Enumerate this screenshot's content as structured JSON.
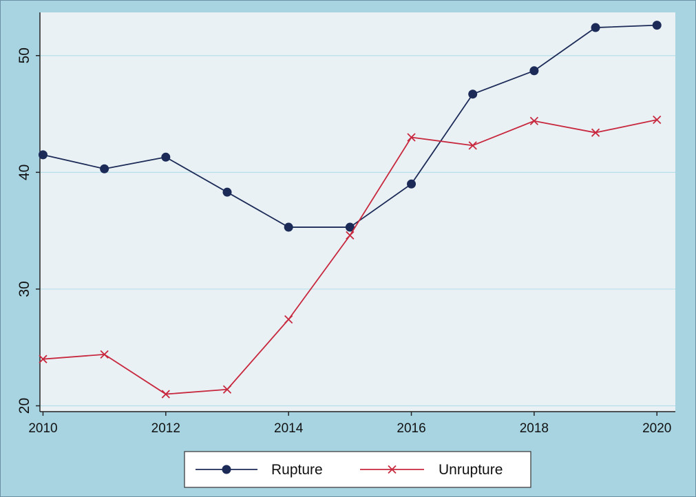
{
  "chart_data": {
    "type": "line",
    "title": "",
    "xlabel": "",
    "ylabel": "",
    "x": [
      2010,
      2011,
      2012,
      2013,
      2014,
      2015,
      2016,
      2017,
      2018,
      2019,
      2020
    ],
    "xlim": [
      2009.95,
      2020.3
    ],
    "ylim": [
      19.5,
      53.7
    ],
    "x_ticks": [
      2010,
      2012,
      2014,
      2016,
      2018,
      2020
    ],
    "y_ticks": [
      20,
      30,
      40,
      50
    ],
    "grid": "horizontal",
    "legend_position": "bottom",
    "series": [
      {
        "name": "Rupture",
        "marker": "circle",
        "color": "#1b2a57",
        "values": [
          41.5,
          40.3,
          41.3,
          38.3,
          35.3,
          35.3,
          39.0,
          46.7,
          48.7,
          52.4,
          52.6
        ]
      },
      {
        "name": "Unrupture",
        "marker": "x",
        "color": "#c8283e",
        "values": [
          24.0,
          24.4,
          21.0,
          21.4,
          27.4,
          34.6,
          43.0,
          42.3,
          44.4,
          43.4,
          44.5
        ]
      }
    ],
    "colors": {
      "outer_background": "#a8d4e2",
      "plot_background": "#e9f1f4",
      "gridline": "#b7dfea",
      "axis": "#222222"
    }
  }
}
